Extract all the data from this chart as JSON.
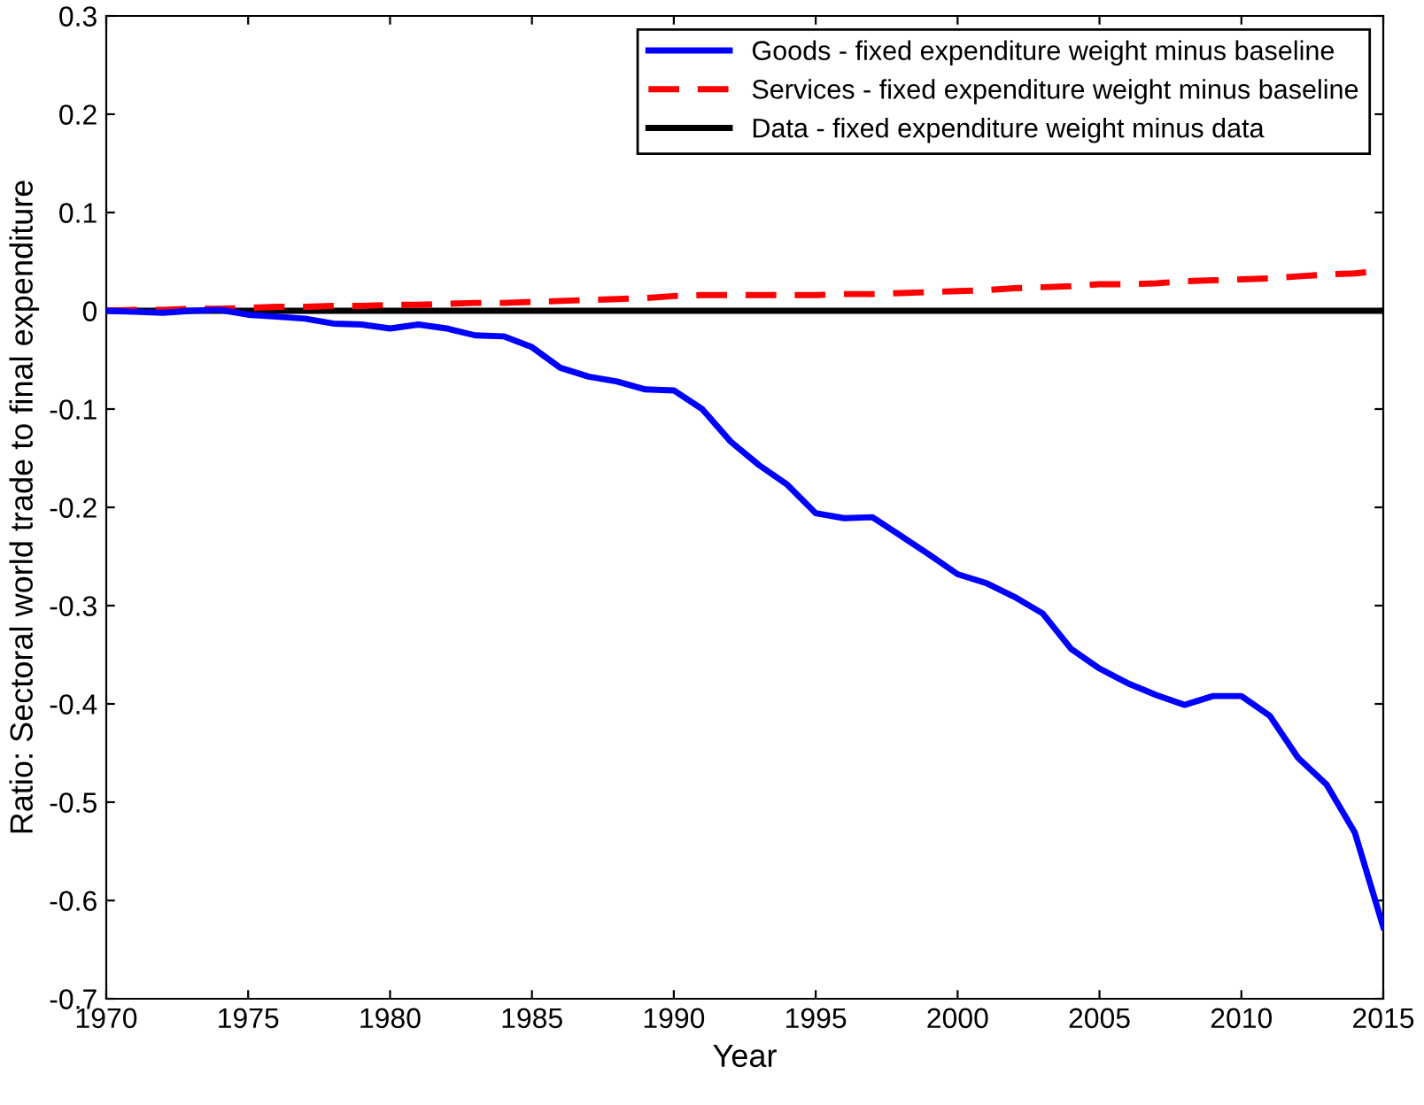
{
  "chart_data": {
    "type": "line",
    "xlabel": "Year",
    "ylabel": "Ratio: Sectoral world trade to final expenditure",
    "x": [
      1970,
      1971,
      1972,
      1973,
      1974,
      1975,
      1976,
      1977,
      1978,
      1979,
      1980,
      1981,
      1982,
      1983,
      1984,
      1985,
      1986,
      1987,
      1988,
      1989,
      1990,
      1991,
      1992,
      1993,
      1994,
      1995,
      1996,
      1997,
      1998,
      1999,
      2000,
      2001,
      2002,
      2003,
      2004,
      2005,
      2006,
      2007,
      2008,
      2009,
      2010,
      2011,
      2012,
      2013,
      2014,
      2015
    ],
    "series": [
      {
        "name": "Goods - fixed expenditure weight minus baseline",
        "color": "#0000ff",
        "line_style": "solid",
        "values": [
          0,
          -0.001,
          -0.002,
          0,
          0.001,
          -0.004,
          -0.006,
          -0.008,
          -0.013,
          -0.014,
          -0.018,
          -0.014,
          -0.018,
          -0.025,
          -0.026,
          -0.037,
          -0.058,
          -0.067,
          -0.072,
          -0.08,
          -0.081,
          -0.1,
          -0.133,
          -0.157,
          -0.177,
          -0.206,
          -0.211,
          -0.21,
          -0.229,
          -0.248,
          -0.268,
          -0.277,
          -0.291,
          -0.308,
          -0.344,
          -0.364,
          -0.379,
          -0.391,
          -0.401,
          -0.392,
          -0.392,
          -0.412,
          -0.455,
          -0.482,
          -0.531,
          -0.627
        ]
      },
      {
        "name": "Services - fixed expenditure weight minus baseline",
        "color": "#ff0000",
        "line_style": "dashed",
        "values": [
          0,
          0.001,
          0.001,
          0.002,
          0.002,
          0.003,
          0.004,
          0.004,
          0.005,
          0.005,
          0.006,
          0.006,
          0.007,
          0.008,
          0.008,
          0.009,
          0.01,
          0.011,
          0.012,
          0.013,
          0.015,
          0.016,
          0.016,
          0.016,
          0.016,
          0.016,
          0.017,
          0.017,
          0.018,
          0.019,
          0.02,
          0.021,
          0.023,
          0.024,
          0.025,
          0.027,
          0.027,
          0.028,
          0.03,
          0.031,
          0.032,
          0.033,
          0.035,
          0.037,
          0.038,
          0.041
        ]
      },
      {
        "name": "Data - fixed expenditure weight minus data",
        "color": "#000000",
        "line_style": "solid",
        "values": [
          0,
          0,
          0,
          0,
          0,
          0,
          0,
          0,
          0,
          0,
          0,
          0,
          0,
          0,
          0,
          0,
          0,
          0,
          0,
          0,
          0,
          0,
          0,
          0,
          0,
          0,
          0,
          0,
          0,
          0,
          0,
          0,
          0,
          0,
          0,
          0,
          0,
          0,
          0,
          0,
          0,
          0,
          0,
          0,
          0,
          0
        ]
      }
    ],
    "xlim": [
      1970,
      2015
    ],
    "xticks": [
      1970,
      1975,
      1980,
      1985,
      1990,
      1995,
      2000,
      2005,
      2010,
      2015
    ],
    "ylim": [
      -0.7,
      0.3
    ],
    "yticks": [
      -0.7,
      -0.6,
      -0.5,
      -0.4,
      -0.3,
      -0.2,
      -0.1,
      0,
      0.1,
      0.2,
      0.3
    ],
    "legend": "top right",
    "grid": false
  }
}
